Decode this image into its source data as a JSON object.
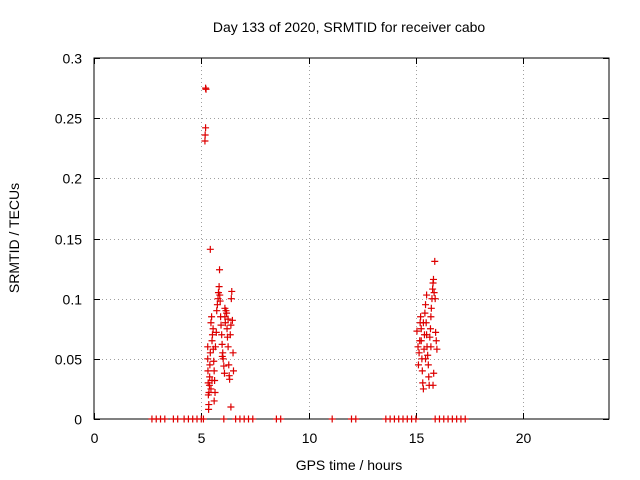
{
  "chart_data": {
    "type": "scatter",
    "title": "Day 133 of 2020, SRMTID for receiver cabo",
    "xlabel": "GPS time / hours",
    "ylabel": "SRMTID / TECUs",
    "xlim": [
      0,
      24
    ],
    "ylim": [
      0,
      0.3
    ],
    "xticks": [
      0,
      5,
      10,
      15,
      20
    ],
    "yticks": [
      0,
      0.05,
      0.1,
      0.15,
      0.2,
      0.25,
      0.3
    ],
    "xtick_labels": [
      "0",
      "5",
      "10",
      "15",
      "20"
    ],
    "ytick_labels": [
      "0",
      "0.05",
      "0.1",
      "0.15",
      "0.2",
      "0.25",
      "0.3"
    ],
    "grid": true,
    "marker": "+",
    "series": [
      {
        "name": "SRMTID",
        "color": "#dd0000",
        "points": [
          [
            5.2,
            0.275
          ],
          [
            5.22,
            0.274
          ],
          [
            5.2,
            0.242
          ],
          [
            5.18,
            0.236
          ],
          [
            5.17,
            0.231
          ],
          [
            5.42,
            0.141
          ],
          [
            5.85,
            0.124
          ],
          [
            5.3,
            0.06
          ],
          [
            5.3,
            0.05
          ],
          [
            5.31,
            0.04
          ],
          [
            5.32,
            0.03
          ],
          [
            5.33,
            0.02
          ],
          [
            5.35,
            0.012
          ],
          [
            5.34,
            0.008
          ],
          [
            5.36,
            0.022
          ],
          [
            5.38,
            0.028
          ],
          [
            5.39,
            0.035
          ],
          [
            5.4,
            0.045
          ],
          [
            5.42,
            0.055
          ],
          [
            5.45,
            0.08
          ],
          [
            5.48,
            0.085
          ],
          [
            5.5,
            0.065
          ],
          [
            5.52,
            0.07
          ],
          [
            5.55,
            0.075
          ],
          [
            5.56,
            0.058
          ],
          [
            5.58,
            0.048
          ],
          [
            5.6,
            0.04
          ],
          [
            5.62,
            0.032
          ],
          [
            5.64,
            0.022
          ],
          [
            5.66,
            0.06
          ],
          [
            5.7,
            0.072
          ],
          [
            5.72,
            0.09
          ],
          [
            5.75,
            0.095
          ],
          [
            5.78,
            0.1
          ],
          [
            5.8,
            0.105
          ],
          [
            5.83,
            0.11
          ],
          [
            5.86,
            0.103
          ],
          [
            5.88,
            0.098
          ],
          [
            5.9,
            0.085
          ],
          [
            5.92,
            0.078
          ],
          [
            5.95,
            0.07
          ],
          [
            5.97,
            0.062
          ],
          [
            6.0,
            0.055
          ],
          [
            6.02,
            0.05
          ],
          [
            6.05,
            0.044
          ],
          [
            6.08,
            0.038
          ],
          [
            6.1,
            0.085
          ],
          [
            6.12,
            0.08
          ],
          [
            6.15,
            0.09
          ],
          [
            6.18,
            0.088
          ],
          [
            6.2,
            0.075
          ],
          [
            6.22,
            0.068
          ],
          [
            6.25,
            0.06
          ],
          [
            6.28,
            0.045
          ],
          [
            6.3,
            0.036
          ],
          [
            6.32,
            0.033
          ],
          [
            6.35,
            0.07
          ],
          [
            6.38,
            0.078
          ],
          [
            6.4,
            0.1
          ],
          [
            6.42,
            0.106
          ],
          [
            6.45,
            0.082
          ],
          [
            6.48,
            0.055
          ],
          [
            6.5,
            0.04
          ],
          [
            6.38,
            0.01
          ],
          [
            6.25,
            0.083
          ],
          [
            6.1,
            0.092
          ],
          [
            5.98,
            0.052
          ],
          [
            5.5,
            0.032
          ],
          [
            5.6,
            0.015
          ],
          [
            5.45,
            0.025
          ],
          [
            2.7,
            0
          ],
          [
            2.9,
            0
          ],
          [
            3.1,
            0
          ],
          [
            3.3,
            0
          ],
          [
            3.7,
            0
          ],
          [
            3.9,
            0
          ],
          [
            4.2,
            0
          ],
          [
            4.4,
            0
          ],
          [
            4.6,
            0
          ],
          [
            4.8,
            0
          ],
          [
            5.0,
            0
          ],
          [
            5.1,
            0
          ],
          [
            6.05,
            0
          ],
          [
            6.6,
            0
          ],
          [
            6.8,
            0
          ],
          [
            7.0,
            0
          ],
          [
            7.2,
            0
          ],
          [
            7.4,
            0
          ],
          [
            8.5,
            0
          ],
          [
            8.7,
            0
          ],
          [
            11.1,
            0
          ],
          [
            12.0,
            0
          ],
          [
            12.2,
            0
          ],
          [
            13.6,
            0
          ],
          [
            13.8,
            0
          ],
          [
            14.0,
            0
          ],
          [
            14.2,
            0
          ],
          [
            14.4,
            0
          ],
          [
            14.6,
            0
          ],
          [
            14.8,
            0
          ],
          [
            15.0,
            0
          ],
          [
            15.9,
            0
          ],
          [
            16.1,
            0
          ],
          [
            16.3,
            0
          ],
          [
            16.5,
            0
          ],
          [
            16.7,
            0
          ],
          [
            16.9,
            0
          ],
          [
            17.1,
            0
          ],
          [
            17.3,
            0
          ],
          [
            15.05,
            0.073
          ],
          [
            15.1,
            0.06
          ],
          [
            15.12,
            0.045
          ],
          [
            15.15,
            0.055
          ],
          [
            15.18,
            0.065
          ],
          [
            15.2,
            0.08
          ],
          [
            15.22,
            0.085
          ],
          [
            15.25,
            0.075
          ],
          [
            15.28,
            0.05
          ],
          [
            15.3,
            0.04
          ],
          [
            15.32,
            0.03
          ],
          [
            15.35,
            0.025
          ],
          [
            15.38,
            0.058
          ],
          [
            15.4,
            0.07
          ],
          [
            15.42,
            0.088
          ],
          [
            15.45,
            0.095
          ],
          [
            15.48,
            0.08
          ],
          [
            15.5,
            0.07
          ],
          [
            15.52,
            0.06
          ],
          [
            15.55,
            0.053
          ],
          [
            15.58,
            0.045
          ],
          [
            15.6,
            0.035
          ],
          [
            15.62,
            0.028
          ],
          [
            15.65,
            0.068
          ],
          [
            15.68,
            0.075
          ],
          [
            15.7,
            0.085
          ],
          [
            15.72,
            0.092
          ],
          [
            15.75,
            0.1
          ],
          [
            15.78,
            0.108
          ],
          [
            15.8,
            0.113
          ],
          [
            15.82,
            0.116
          ],
          [
            15.85,
            0.105
          ],
          [
            15.88,
            0.131
          ],
          [
            15.9,
            0.1
          ],
          [
            15.92,
            0.072
          ],
          [
            15.95,
            0.065
          ],
          [
            15.98,
            0.058
          ],
          [
            15.83,
            0.038
          ],
          [
            15.8,
            0.028
          ],
          [
            15.5,
            0.103
          ],
          [
            15.25,
            0.065
          ],
          [
            15.45,
            0.05
          ],
          [
            15.7,
            0.06
          ],
          [
            15.35,
            0.08
          ]
        ]
      }
    ]
  }
}
